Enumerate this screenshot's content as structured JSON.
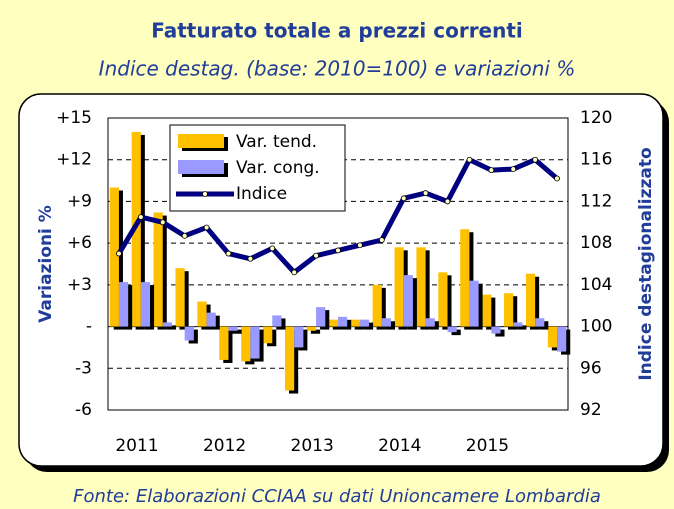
{
  "chart_data": {
    "type": "bar_line",
    "title": "Fatturato totale a prezzi correnti",
    "subtitle": "Indice destag. (base: 2010=100) e variazioni %",
    "ylabel": "Variazioni %",
    "y2label": "Indice destagionalizzato",
    "source": "Fonte: Elaborazioni CCIAA su dati Unioncamere Lombardia",
    "categories": [
      "2011",
      null,
      null,
      null,
      "2012",
      null,
      null,
      null,
      "2013",
      null,
      null,
      null,
      "2014",
      null,
      null,
      null,
      "2015",
      null,
      null,
      null,
      null
    ],
    "series": [
      {
        "name": "Var. tend.",
        "type": "bar",
        "color": "#ffc000",
        "values": [
          10,
          14,
          8.2,
          4.2,
          1.8,
          -2.4,
          -2.5,
          -1.2,
          -4.6,
          -0.3,
          0.5,
          0.5,
          3,
          5.7,
          5.7,
          3.9,
          7,
          2.3,
          2.4,
          3.8,
          -1.5
        ]
      },
      {
        "name": "Var. cong.",
        "type": "bar",
        "color": "#9999ff",
        "values": [
          3.2,
          3.2,
          0.3,
          -1,
          1,
          -0.3,
          -2.3,
          0.8,
          -1.5,
          1.4,
          0.7,
          0.5,
          0.6,
          3.7,
          0.6,
          -0.4,
          3.3,
          -0.5,
          0.3,
          0.6,
          -1.8
        ]
      },
      {
        "name": "Indice",
        "type": "line",
        "axis": "y2",
        "color": "#000080",
        "values": [
          107,
          110.5,
          110,
          108.7,
          109.5,
          107,
          106.5,
          107.5,
          105.2,
          106.8,
          107.3,
          107.8,
          108.3,
          112.3,
          112.8,
          112,
          116,
          115,
          115.1,
          116,
          114.2
        ]
      }
    ],
    "ylim": [
      -6,
      15
    ],
    "yticks": [
      {
        "value": 15,
        "label": "+15"
      },
      {
        "value": 12,
        "label": "+12"
      },
      {
        "value": 9,
        "label": "+9"
      },
      {
        "value": 6,
        "label": "+6"
      },
      {
        "value": 3,
        "label": "+3"
      },
      {
        "value": 0,
        "label": "-"
      },
      -3,
      -6
    ],
    "y2lim": [
      92,
      120
    ],
    "y2ticks": [
      120,
      116,
      112,
      108,
      104,
      100,
      96,
      92
    ],
    "grid": true
  }
}
